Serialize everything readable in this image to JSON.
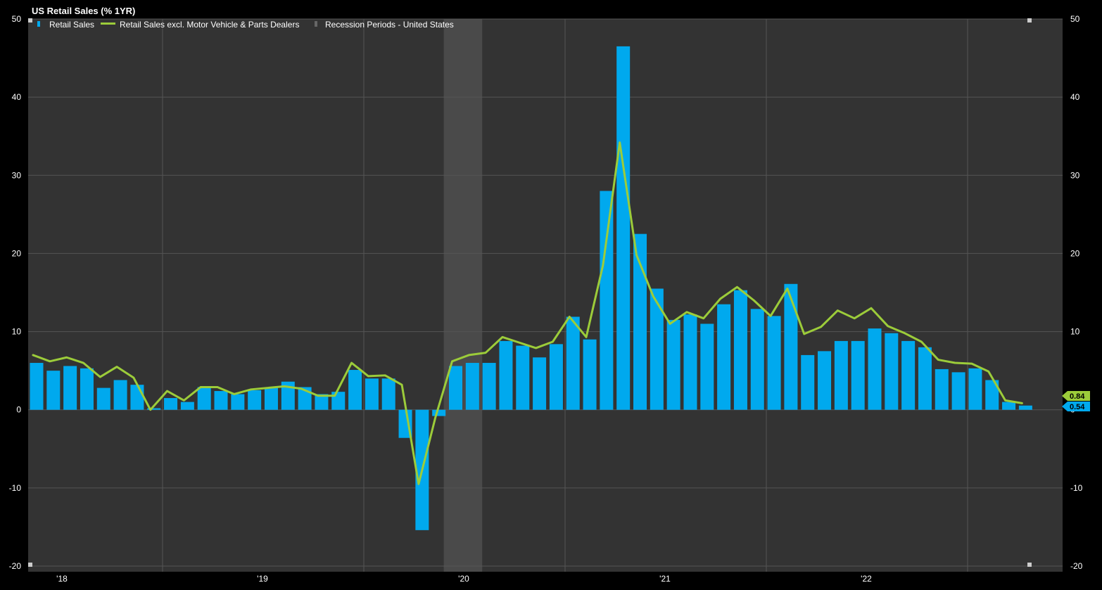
{
  "chart_data": {
    "type": "bar",
    "title": "US Retail Sales (% 1YR)",
    "ylim": [
      -20,
      50
    ],
    "yticks": [
      -20,
      -10,
      0,
      10,
      20,
      30,
      40,
      50
    ],
    "year_labels": [
      "'18",
      "'19",
      "'20",
      "'21",
      "'22"
    ],
    "grid": true,
    "legend_position": "top-left",
    "colors": {
      "background": "#333333",
      "frame": "#000000",
      "grid": "#555555",
      "bar": "#00a9ee",
      "line": "#9ccc3a",
      "recession": "#4a4a4a",
      "text": "#ffffff"
    },
    "legend": [
      {
        "label": "Retail Sales",
        "kind": "bar"
      },
      {
        "label": "Retail Sales excl. Motor Vehicle & Parts Dealers",
        "kind": "line"
      },
      {
        "label": "Recession Periods - United States",
        "kind": "area"
      }
    ],
    "x": [
      "2018-01",
      "2018-02",
      "2018-03",
      "2018-04",
      "2018-05",
      "2018-06",
      "2018-07",
      "2018-08",
      "2018-09",
      "2018-10",
      "2018-11",
      "2018-12",
      "2019-01",
      "2019-02",
      "2019-03",
      "2019-04",
      "2019-05",
      "2019-06",
      "2019-07",
      "2019-08",
      "2019-09",
      "2019-10",
      "2019-11",
      "2019-12",
      "2020-01",
      "2020-02",
      "2020-03",
      "2020-04",
      "2020-05",
      "2020-06",
      "2020-07",
      "2020-08",
      "2020-09",
      "2020-10",
      "2020-11",
      "2020-12",
      "2021-01",
      "2021-02",
      "2021-03",
      "2021-04",
      "2021-05",
      "2021-06",
      "2021-07",
      "2021-08",
      "2021-09",
      "2021-10",
      "2021-11",
      "2021-12",
      "2022-01",
      "2022-02",
      "2022-03",
      "2022-04",
      "2022-05",
      "2022-06",
      "2022-07",
      "2022-08",
      "2022-09",
      "2022-10",
      "2022-11",
      "2022-12"
    ],
    "series": [
      {
        "name": "Retail Sales",
        "type": "bar",
        "values": [
          6.0,
          5.0,
          5.6,
          5.3,
          2.8,
          3.8,
          3.2,
          0.2,
          1.5,
          1.0,
          2.9,
          2.4,
          2.0,
          2.5,
          2.8,
          3.6,
          2.9,
          2.0,
          2.3,
          5.1,
          4.0,
          4.0,
          -3.6,
          -15.4,
          -0.8,
          5.6,
          6.0,
          6.0,
          8.8,
          8.2,
          6.7,
          8.4,
          11.9,
          9.0,
          28.0,
          46.5,
          22.5,
          15.5,
          11.5,
          12.2,
          11.0,
          13.5,
          15.3,
          12.9,
          12.0,
          16.1,
          7.0,
          7.5,
          8.8,
          8.8,
          10.4,
          9.8,
          8.8,
          8.0,
          5.2,
          4.8,
          5.3,
          3.8,
          1.0,
          0.54
        ]
      },
      {
        "name": "Retail Sales excl. Motor Vehicle & Parts Dealers",
        "type": "line",
        "values": [
          7.0,
          6.2,
          6.7,
          6.0,
          4.2,
          5.5,
          4.1,
          0.0,
          2.4,
          1.2,
          2.9,
          2.9,
          2.0,
          2.6,
          2.8,
          3.0,
          2.7,
          1.8,
          1.8,
          6.0,
          4.3,
          4.4,
          3.2,
          -9.5,
          -1.0,
          6.2,
          7.0,
          7.3,
          9.3,
          8.6,
          7.9,
          8.7,
          11.9,
          9.3,
          18.5,
          34.2,
          19.8,
          14.5,
          11.0,
          12.5,
          11.7,
          14.2,
          15.7,
          14.0,
          12.0,
          15.5,
          9.7,
          10.6,
          12.7,
          11.7,
          13.0,
          10.7,
          9.8,
          8.7,
          6.4,
          6.0,
          5.9,
          4.9,
          1.2,
          0.84
        ]
      }
    ],
    "recession": {
      "start": "2020-02",
      "end": "2020-04"
    },
    "last_values": {
      "line": "0.84",
      "bar": "0.54"
    }
  }
}
